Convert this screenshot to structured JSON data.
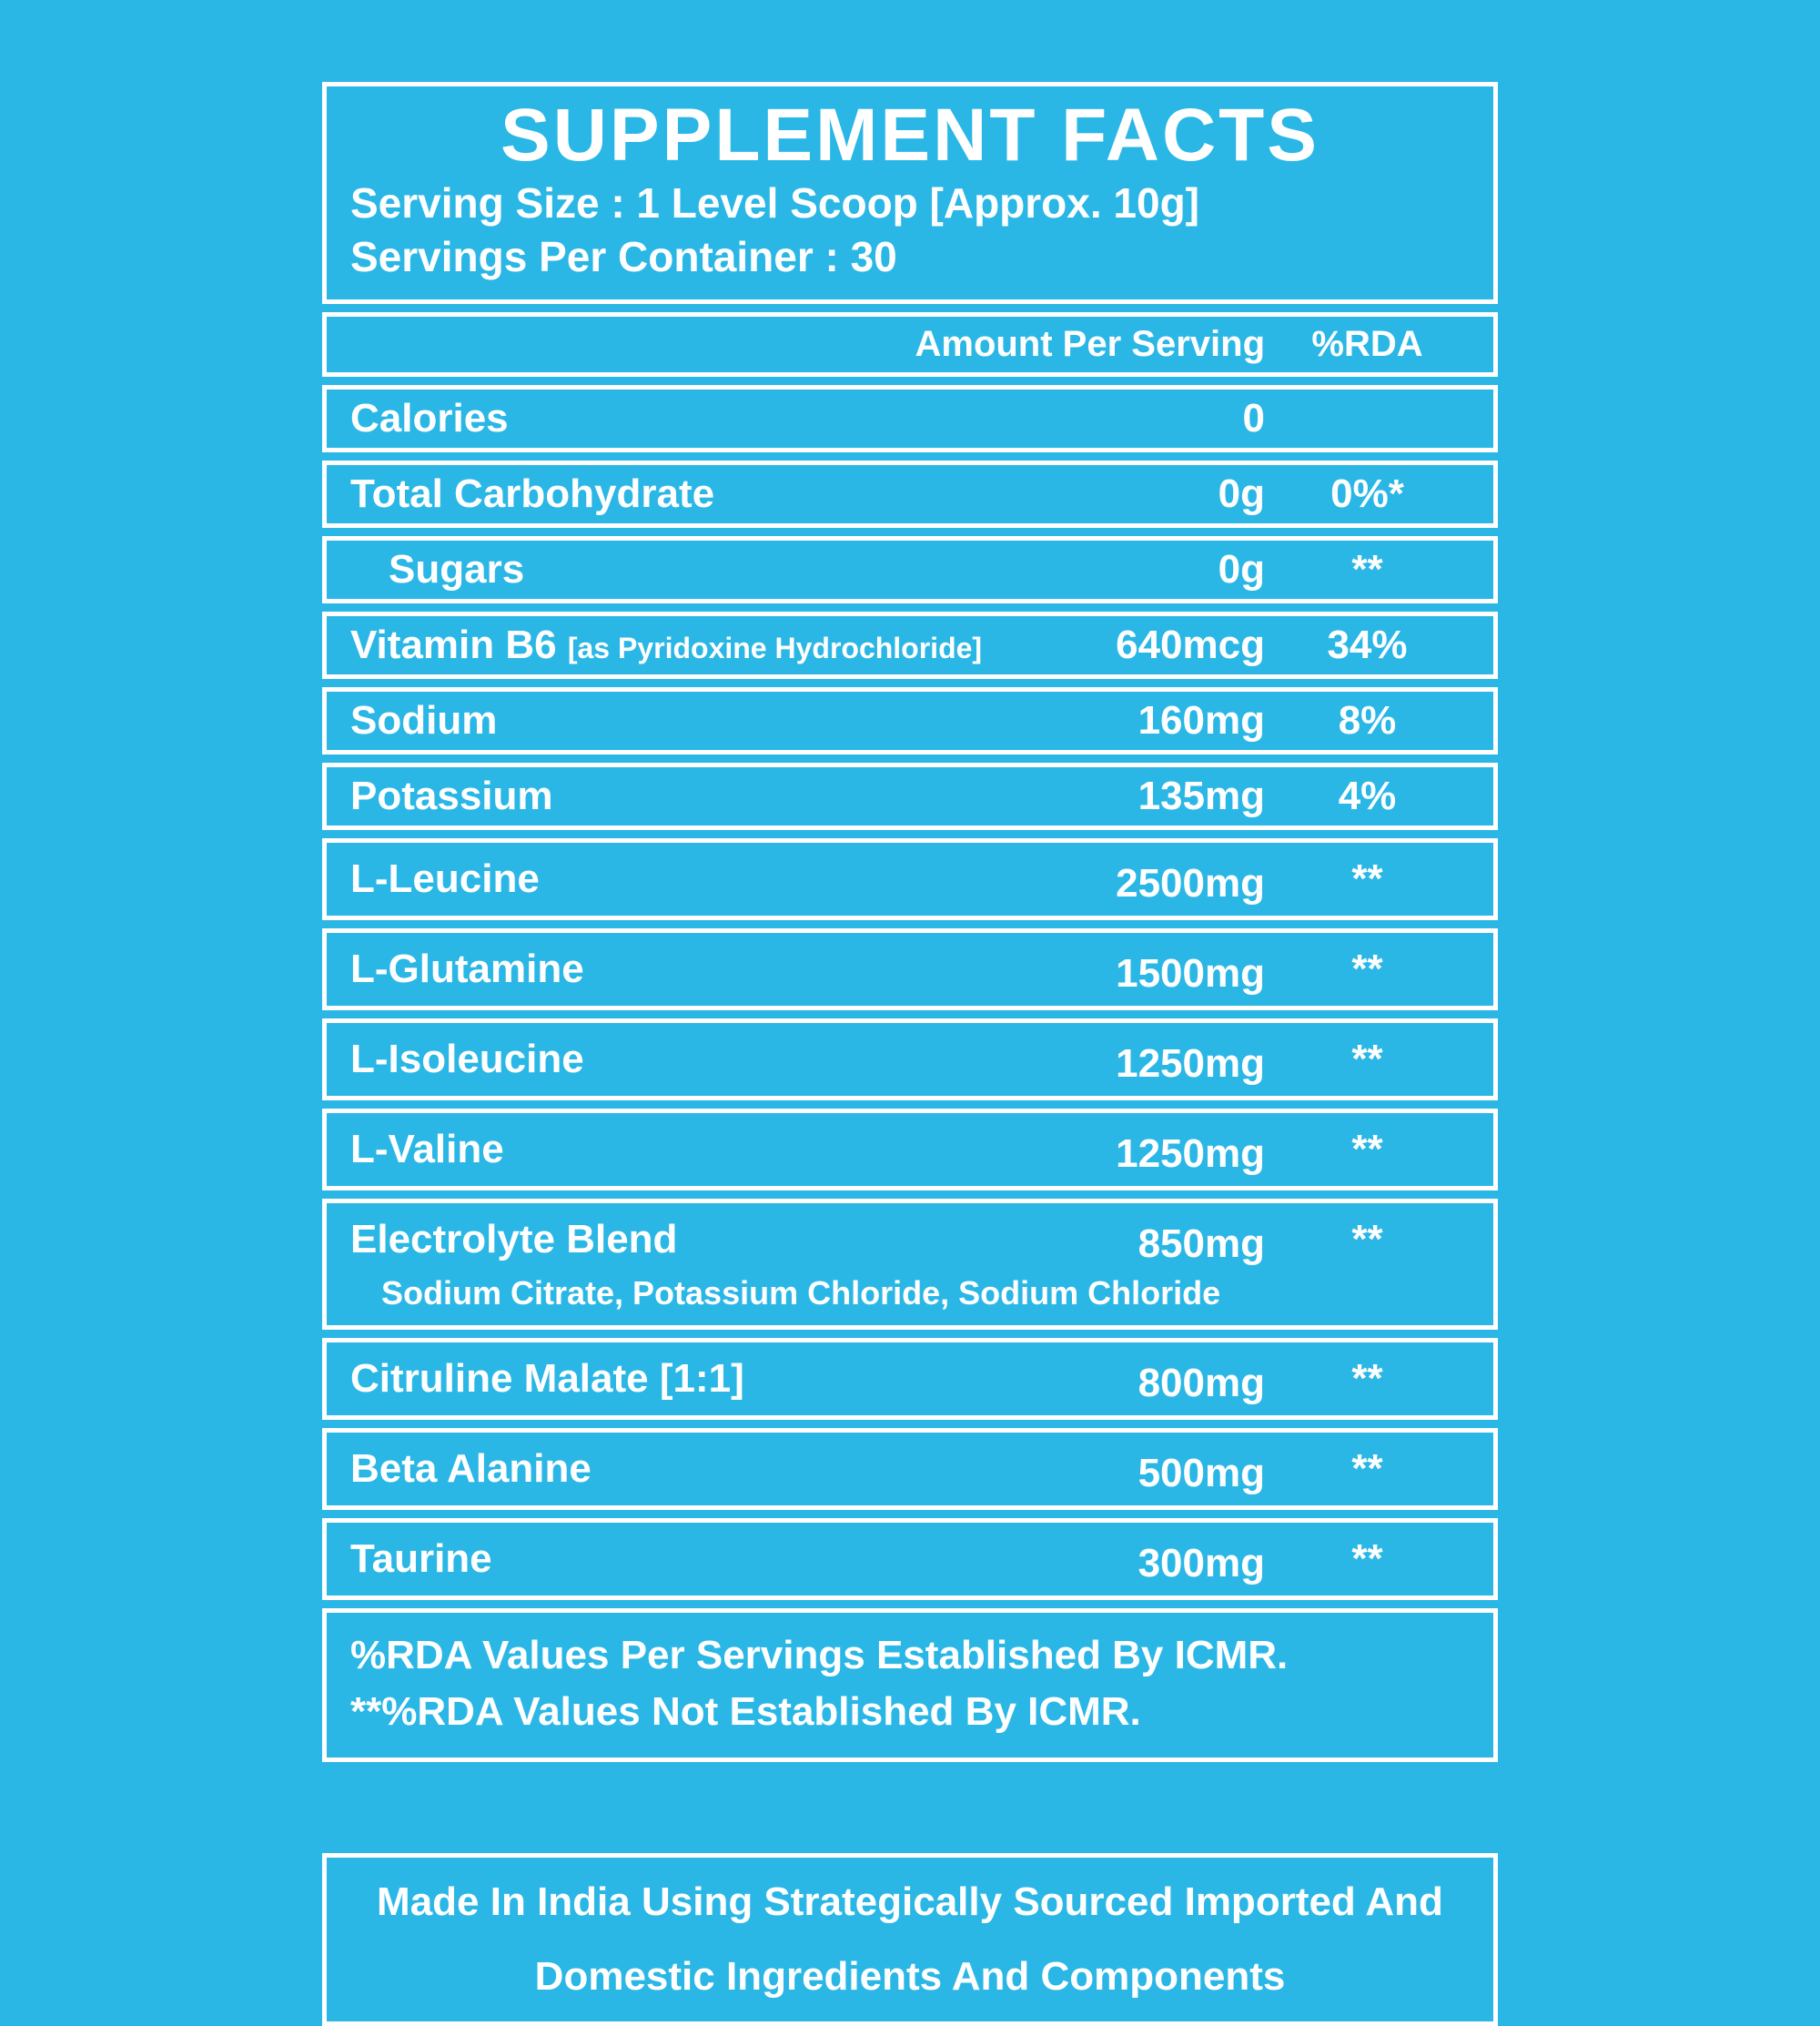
{
  "colors": {
    "background": "#2bb7e6",
    "foreground": "#ffffff"
  },
  "label": {
    "title": "SUPPLEMENT FACTS",
    "serving_size": "Serving Size : 1 Level Scoop [Approx. 10g]",
    "servings_per_container": "Servings Per Container : 30",
    "header": {
      "amount": "Amount Per Serving",
      "rda": "%RDA"
    },
    "rows": [
      {
        "name": "Calories",
        "amount": "0",
        "rda": ""
      },
      {
        "name": "Total Carbohydrate",
        "amount": "0g",
        "rda": "0%*"
      },
      {
        "name": "Sugars",
        "amount": "0g",
        "rda": "**",
        "indent": true
      },
      {
        "name": "Vitamin B6",
        "note": "[as Pyridoxine Hydrochloride]",
        "amount": "640mcg",
        "rda": "34%"
      },
      {
        "name": "Sodium",
        "amount": "160mg",
        "rda": "8%"
      },
      {
        "name": "Potassium",
        "amount": "135mg",
        "rda": "4%"
      },
      {
        "name": "L-Leucine",
        "amount": "2500mg",
        "rda": "**",
        "tall": true
      },
      {
        "name": "L-Glutamine",
        "amount": "1500mg",
        "rda": "**",
        "tall": true
      },
      {
        "name": "L-Isoleucine",
        "amount": "1250mg",
        "rda": "**",
        "tall": true
      },
      {
        "name": "L-Valine",
        "amount": "1250mg",
        "rda": "**",
        "tall": true
      },
      {
        "name": "Electrolyte Blend",
        "amount": "850mg",
        "rda": "**",
        "tall": true,
        "subtext": "Sodium Citrate, Potassium Chloride, Sodium Chloride"
      },
      {
        "name": "Citruline Malate [1:1]",
        "amount": "800mg",
        "rda": "**",
        "tall": true
      },
      {
        "name": "Beta Alanine",
        "amount": "500mg",
        "rda": "**",
        "tall": true
      },
      {
        "name": "Taurine",
        "amount": "300mg",
        "rda": "**",
        "tall": true
      }
    ],
    "footnotes": [
      "%RDA  Values Per Servings Established By ICMR.",
      "**%RDA  Values Not Established By ICMR."
    ]
  },
  "footer_box": {
    "line1": "Made In India Using Strategically Sourced Imported And",
    "line2": "Domestic Ingredients And Components"
  }
}
